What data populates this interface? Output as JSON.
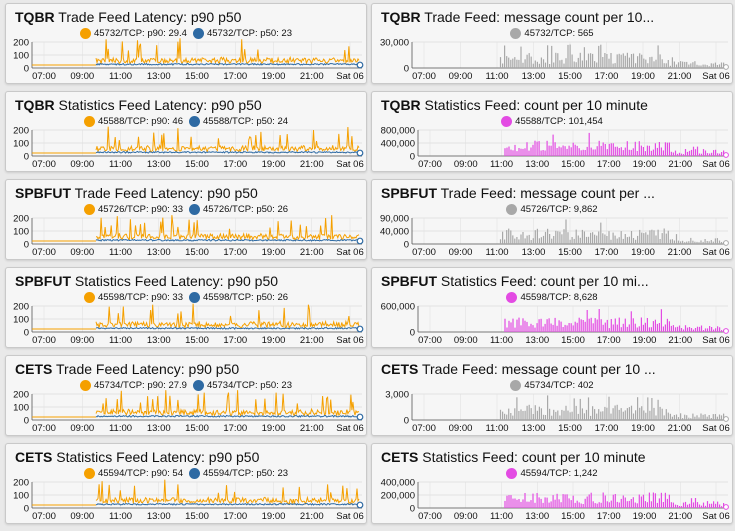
{
  "colors": {
    "orange": "#f5a000",
    "blue": "#2e6aa3",
    "gray": "#a8a8a8",
    "magenta": "#e34be3"
  },
  "panels": [
    {
      "id": "tqbr-trade-latency",
      "kind": "latency",
      "col": 0,
      "row": 0,
      "title_bold": "TQBR",
      "title_rest": " Trade Feed Latency: p90 p50",
      "legend": [
        "45732/TCP: p90: 29.4",
        "45732/TCP: p50: 23"
      ],
      "y_ticks": [
        "200",
        "100",
        "0"
      ],
      "x_ticks": [
        "07:00",
        "09:00",
        "11:00",
        "13:00",
        "15:00",
        "17:00",
        "19:00",
        "21:00",
        "Sat 06"
      ]
    },
    {
      "id": "tqbr-trade-count",
      "kind": "count",
      "col": 1,
      "row": 0,
      "title_bold": "TQBR",
      "title_rest": " Trade Feed: message count per 10...",
      "legend": [
        "45732/TCP: 565"
      ],
      "y_ticks": [
        "30,000",
        "0"
      ],
      "x_ticks": [
        "07:00",
        "09:00",
        "11:00",
        "13:00",
        "15:00",
        "17:00",
        "19:00",
        "21:00",
        "Sat 06"
      ]
    },
    {
      "id": "tqbr-stats-latency",
      "kind": "latency",
      "col": 0,
      "row": 1,
      "title_bold": "TQBR",
      "title_rest": " Statistics Feed Latency: p90 p50",
      "legend": [
        "45588/TCP: p90: 46",
        "45588/TCP: p50: 24"
      ],
      "y_ticks": [
        "200",
        "100",
        "0"
      ],
      "x_ticks": [
        "07:00",
        "09:00",
        "11:00",
        "13:00",
        "15:00",
        "17:00",
        "19:00",
        "21:00",
        "Sat 06"
      ]
    },
    {
      "id": "tqbr-stats-count",
      "kind": "count",
      "col": 1,
      "row": 1,
      "title_bold": "TQBR",
      "title_rest": " Statistics Feed: count per 10 minute",
      "legend": [
        "45588/TCP: 101,454"
      ],
      "y_ticks": [
        "800,000",
        "400,000",
        "0"
      ],
      "x_ticks": [
        "07:00",
        "09:00",
        "11:00",
        "13:00",
        "15:00",
        "17:00",
        "19:00",
        "21:00",
        "Sat 06"
      ]
    },
    {
      "id": "spbfut-trade-latency",
      "kind": "latency",
      "col": 0,
      "row": 2,
      "title_bold": "SPBFUT",
      "title_rest": " Trade Feed Latency: p90 p50",
      "legend": [
        "45726/TCP: p90: 33",
        "45726/TCP: p50: 26"
      ],
      "y_ticks": [
        "200",
        "100",
        "0"
      ],
      "x_ticks": [
        "07:00",
        "09:00",
        "11:00",
        "13:00",
        "15:00",
        "17:00",
        "19:00",
        "21:00",
        "Sat 06"
      ]
    },
    {
      "id": "spbfut-trade-count",
      "kind": "count",
      "col": 1,
      "row": 2,
      "title_bold": "SPBFUT",
      "title_rest": " Trade Feed: message count per ...",
      "legend": [
        "45726/TCP: 9,862"
      ],
      "y_ticks": [
        "90,000",
        "40,000",
        "0"
      ],
      "x_ticks": [
        "07:00",
        "09:00",
        "11:00",
        "13:00",
        "15:00",
        "17:00",
        "19:00",
        "21:00",
        "Sat 06"
      ]
    },
    {
      "id": "spbfut-stats-latency",
      "kind": "latency",
      "col": 0,
      "row": 3,
      "title_bold": "SPBFUT",
      "title_rest": " Statistics Feed Latency: p90 p50",
      "legend": [
        "45598/TCP: p90: 33",
        "45598/TCP: p50: 26"
      ],
      "y_ticks": [
        "200",
        "100",
        "0"
      ],
      "x_ticks": [
        "07:00",
        "09:00",
        "11:00",
        "13:00",
        "15:00",
        "17:00",
        "19:00",
        "21:00",
        "Sat 06"
      ]
    },
    {
      "id": "spbfut-stats-count",
      "kind": "count",
      "col": 1,
      "row": 3,
      "title_bold": "SPBFUT",
      "title_rest": " Statistics Feed: count per 10 mi...",
      "legend": [
        "45598/TCP: 8,628"
      ],
      "y_ticks": [
        "600,000",
        "0"
      ],
      "x_ticks": [
        "07:00",
        "09:00",
        "11:00",
        "13:00",
        "15:00",
        "17:00",
        "19:00",
        "21:00",
        "Sat 06"
      ]
    },
    {
      "id": "cets-trade-latency",
      "kind": "latency",
      "col": 0,
      "row": 4,
      "title_bold": "CETS",
      "title_rest": " Trade Feed Latency: p90 p50",
      "legend": [
        "45734/TCP: p90: 27.9",
        "45734/TCP: p50: 23"
      ],
      "y_ticks": [
        "200",
        "100",
        "0"
      ],
      "x_ticks": [
        "07:00",
        "09:00",
        "11:00",
        "13:00",
        "15:00",
        "17:00",
        "19:00",
        "21:00",
        "Sat 06"
      ]
    },
    {
      "id": "cets-trade-count",
      "kind": "count",
      "col": 1,
      "row": 4,
      "title_bold": "CETS",
      "title_rest": " Trade Feed: message count per 10 ...",
      "legend": [
        "45734/TCP: 402"
      ],
      "y_ticks": [
        "3,000",
        "0"
      ],
      "x_ticks": [
        "07:00",
        "09:00",
        "11:00",
        "13:00",
        "15:00",
        "17:00",
        "19:00",
        "21:00",
        "Sat 06"
      ]
    },
    {
      "id": "cets-stats-latency",
      "kind": "latency",
      "col": 0,
      "row": 5,
      "title_bold": "CETS",
      "title_rest": " Statistics Feed Latency: p90 p50",
      "legend": [
        "45594/TCP: p90: 54",
        "45594/TCP: p50: 23"
      ],
      "y_ticks": [
        "200",
        "100",
        "0"
      ],
      "x_ticks": [
        "07:00",
        "09:00",
        "11:00",
        "13:00",
        "15:00",
        "17:00",
        "19:00",
        "21:00",
        "Sat 06"
      ]
    },
    {
      "id": "cets-stats-count",
      "kind": "count",
      "col": 1,
      "row": 5,
      "title_bold": "CETS",
      "title_rest": " Statistics Feed: count per 10 minute",
      "legend": [
        "45594/TCP: 1,242"
      ],
      "y_ticks": [
        "400,000",
        "200,000",
        "0"
      ],
      "x_ticks": [
        "07:00",
        "09:00",
        "11:00",
        "13:00",
        "15:00",
        "17:00",
        "19:00",
        "21:00",
        "Sat 06"
      ]
    }
  ]
}
